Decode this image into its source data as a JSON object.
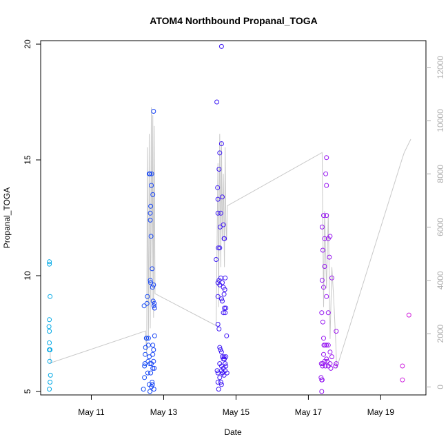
{
  "chart_data": {
    "type": "scatter",
    "title": "ATOM4 Northbound Propanal_TOGA",
    "xlabel": "Date",
    "ylabel": "Propanal_TOGA",
    "x_unit": "days in May",
    "xlim": [
      9.6,
      20.25
    ],
    "ylim": [
      4.85,
      20.15
    ],
    "x_ticks": [
      {
        "value": 11,
        "label": "May 11"
      },
      {
        "value": 13,
        "label": "May 13"
      },
      {
        "value": 15,
        "label": "May 15"
      },
      {
        "value": 17,
        "label": "May 17"
      },
      {
        "value": 19,
        "label": "May 19"
      }
    ],
    "y_ticks": [
      5,
      10,
      15,
      20
    ],
    "y2": {
      "label": "",
      "ticks": [
        0,
        2000,
        4000,
        6000,
        8000,
        10000,
        12000
      ],
      "lim": [
        -300,
        13000
      ]
    },
    "grid": false,
    "legend": "none",
    "color_note": "point colour encodes date (cyan -> blue -> purple -> magenta)",
    "series": [
      {
        "name": "Propanal_TOGA",
        "axis": "left",
        "points": [
          [
            9.84,
            10.6
          ],
          [
            9.84,
            10.5
          ],
          [
            9.86,
            9.1
          ],
          [
            9.84,
            8.1
          ],
          [
            9.83,
            7.8
          ],
          [
            9.84,
            7.6
          ],
          [
            9.84,
            7.1
          ],
          [
            9.84,
            6.8
          ],
          [
            9.86,
            6.8
          ],
          [
            9.85,
            6.3
          ],
          [
            9.87,
            5.7
          ],
          [
            9.86,
            5.4
          ],
          [
            9.84,
            5.1
          ],
          [
            12.44,
            5.1
          ],
          [
            12.47,
            5.6
          ],
          [
            12.47,
            6.1
          ],
          [
            12.48,
            6.2
          ],
          [
            12.49,
            6.6
          ],
          [
            12.5,
            6.9
          ],
          [
            12.46,
            8.7
          ],
          [
            12.52,
            7.3
          ],
          [
            12.53,
            7.3
          ],
          [
            12.54,
            8.8
          ],
          [
            12.55,
            9.1
          ],
          [
            12.56,
            5.8
          ],
          [
            12.57,
            6.3
          ],
          [
            12.58,
            7.0
          ],
          [
            12.58,
            7.3
          ],
          [
            12.6,
            6.5
          ],
          [
            12.6,
            14.4
          ],
          [
            12.62,
            14.4
          ],
          [
            12.63,
            12.4
          ],
          [
            12.63,
            12.7
          ],
          [
            12.64,
            13.0
          ],
          [
            12.66,
            13.9
          ],
          [
            12.67,
            14.4
          ],
          [
            12.65,
            11.7
          ],
          [
            12.63,
            9.8
          ],
          [
            12.64,
            9.7
          ],
          [
            12.68,
            10.3
          ],
          [
            12.69,
            9.5
          ],
          [
            12.7,
            13.5
          ],
          [
            12.72,
            9.6
          ],
          [
            12.71,
            8.9
          ],
          [
            12.74,
            8.8
          ],
          [
            12.72,
            17.1
          ],
          [
            12.75,
            8.6
          ],
          [
            12.73,
            8.7
          ],
          [
            12.62,
            6.2
          ],
          [
            12.66,
            6.2
          ],
          [
            12.7,
            6.0
          ],
          [
            12.72,
            6.3
          ],
          [
            12.74,
            6.0
          ],
          [
            12.75,
            7.4
          ],
          [
            12.7,
            7.0
          ],
          [
            12.68,
            5.4
          ],
          [
            12.66,
            5.2
          ],
          [
            12.69,
            5.3
          ],
          [
            12.73,
            5.1
          ],
          [
            12.62,
            5.0
          ],
          [
            12.64,
            5.8
          ],
          [
            12.6,
            5.3
          ],
          [
            12.7,
            6.6
          ],
          [
            12.72,
            6.8
          ],
          [
            14.45,
            10.7
          ],
          [
            14.47,
            17.5
          ],
          [
            14.49,
            13.8
          ],
          [
            14.5,
            13.3
          ],
          [
            14.5,
            12.7
          ],
          [
            14.51,
            11.2
          ],
          [
            14.53,
            14.6
          ],
          [
            14.55,
            15.3
          ],
          [
            14.6,
            15.7
          ],
          [
            14.62,
            13.4
          ],
          [
            14.58,
            12.7
          ],
          [
            14.56,
            12.1
          ],
          [
            14.65,
            12.2
          ],
          [
            14.67,
            11.6
          ],
          [
            14.68,
            11.6
          ],
          [
            14.55,
            11.2
          ],
          [
            14.6,
            19.9
          ],
          [
            14.5,
            9.7
          ],
          [
            14.53,
            9.8
          ],
          [
            14.55,
            9.6
          ],
          [
            14.58,
            9.9
          ],
          [
            14.62,
            9.7
          ],
          [
            14.65,
            9.5
          ],
          [
            14.67,
            9.2
          ],
          [
            14.69,
            9.4
          ],
          [
            14.7,
            9.9
          ],
          [
            14.62,
            8.9
          ],
          [
            14.6,
            9.0
          ],
          [
            14.68,
            8.6
          ],
          [
            14.7,
            8.4
          ],
          [
            14.72,
            8.6
          ],
          [
            14.65,
            8.4
          ],
          [
            14.5,
            7.9
          ],
          [
            14.53,
            7.7
          ],
          [
            14.55,
            6.9
          ],
          [
            14.57,
            6.8
          ],
          [
            14.6,
            6.7
          ],
          [
            14.62,
            6.5
          ],
          [
            14.65,
            6.4
          ],
          [
            14.67,
            6.5
          ],
          [
            14.7,
            6.2
          ],
          [
            14.72,
            6.5
          ],
          [
            14.74,
            7.4
          ],
          [
            14.55,
            6.2
          ],
          [
            14.6,
            5.9
          ],
          [
            14.63,
            5.8
          ],
          [
            14.67,
            5.7
          ],
          [
            14.7,
            5.9
          ],
          [
            14.75,
            5.8
          ],
          [
            14.48,
            5.9
          ],
          [
            14.5,
            5.4
          ],
          [
            14.52,
            5.1
          ],
          [
            14.55,
            5.6
          ],
          [
            14.58,
            5.4
          ],
          [
            14.6,
            5.3
          ],
          [
            14.62,
            5.8
          ],
          [
            14.65,
            6.0
          ],
          [
            14.68,
            6.4
          ],
          [
            14.72,
            6.1
          ],
          [
            14.6,
            6.1
          ],
          [
            14.5,
            9.1
          ],
          [
            14.5,
            5.8
          ],
          [
            17.35,
            5.6
          ],
          [
            17.37,
            5.5
          ],
          [
            17.38,
            5.5
          ],
          [
            17.37,
            5.0
          ],
          [
            17.39,
            6.1
          ],
          [
            17.4,
            6.2
          ],
          [
            17.36,
            6.2
          ],
          [
            17.42,
            6.6
          ],
          [
            17.43,
            7.0
          ],
          [
            17.45,
            6.3
          ],
          [
            17.47,
            6.1
          ],
          [
            17.5,
            6.4
          ],
          [
            17.52,
            6.3
          ],
          [
            17.55,
            6.1
          ],
          [
            17.6,
            6.2
          ],
          [
            17.62,
            6.0
          ],
          [
            17.75,
            6.1
          ],
          [
            17.77,
            6.2
          ],
          [
            17.42,
            7.3
          ],
          [
            17.46,
            7.0
          ],
          [
            17.5,
            7.0
          ],
          [
            17.55,
            7.0
          ],
          [
            17.6,
            6.7
          ],
          [
            17.65,
            6.5
          ],
          [
            17.4,
            8.0
          ],
          [
            17.37,
            8.4
          ],
          [
            17.55,
            8.4
          ],
          [
            17.5,
            9.1
          ],
          [
            17.42,
            9.5
          ],
          [
            17.38,
            9.8
          ],
          [
            17.65,
            9.9
          ],
          [
            17.4,
            11.1
          ],
          [
            17.45,
            10.4
          ],
          [
            17.58,
            10.8
          ],
          [
            17.38,
            12.1
          ],
          [
            17.42,
            12.6
          ],
          [
            17.55,
            11.6
          ],
          [
            17.6,
            11.7
          ],
          [
            17.5,
            13.9
          ],
          [
            17.48,
            14.4
          ],
          [
            17.5,
            15.1
          ],
          [
            17.45,
            11.6
          ],
          [
            17.77,
            7.6
          ],
          [
            17.5,
            12.6
          ],
          [
            19.6,
            6.1
          ],
          [
            19.6,
            5.5
          ],
          [
            19.78,
            8.3
          ]
        ]
      },
      {
        "name": "secondary trace (grey line)",
        "axis": "right",
        "points": [
          [
            9.86,
            1500
          ],
          [
            9.87,
            900
          ],
          [
            12.5,
            2100
          ],
          [
            12.53,
            1200
          ],
          [
            12.55,
            9000
          ],
          [
            12.58,
            1800
          ],
          [
            12.6,
            9500
          ],
          [
            12.63,
            2200
          ],
          [
            12.66,
            10500
          ],
          [
            12.68,
            3000
          ],
          [
            12.7,
            10200
          ],
          [
            12.72,
            2600
          ],
          [
            12.74,
            9800
          ],
          [
            12.76,
            3500
          ],
          [
            14.45,
            2300
          ],
          [
            14.5,
            8400
          ],
          [
            14.52,
            3000
          ],
          [
            14.55,
            9500
          ],
          [
            14.58,
            4500
          ],
          [
            14.6,
            9200
          ],
          [
            14.62,
            5500
          ],
          [
            14.65,
            8000
          ],
          [
            14.68,
            4500
          ],
          [
            14.7,
            9000
          ],
          [
            14.72,
            6200
          ],
          [
            14.74,
            5500
          ],
          [
            14.76,
            6800
          ],
          [
            17.38,
            8800
          ],
          [
            17.42,
            3000
          ],
          [
            17.45,
            6600
          ],
          [
            17.5,
            3700
          ],
          [
            17.55,
            6500
          ],
          [
            17.6,
            1800
          ],
          [
            17.65,
            4500
          ],
          [
            17.7,
            3300
          ],
          [
            17.76,
            1600
          ],
          [
            17.78,
            700
          ],
          [
            19.6,
            8600
          ],
          [
            19.65,
            8800
          ],
          [
            19.83,
            9300
          ]
        ]
      }
    ]
  }
}
